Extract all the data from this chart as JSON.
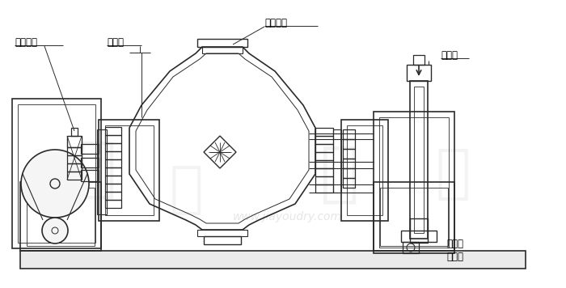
{
  "bg_color": "#ffffff",
  "line_color": "#2a2a2a",
  "lw": 1.0,
  "labels": {
    "rotate_joint_left": "旋转接头",
    "seal_seat": "密封座",
    "rotate_joint_top": "旋转接头",
    "heat_source": "进热源",
    "condenser": "冷凝器\n或回流"
  },
  "watermark_text": "www.jiayoudry.com",
  "watermark_color": "#c8c8c8",
  "watermark_alpha": 0.45,
  "logo_color": "#d0d0d0",
  "logo_alpha": 0.25
}
